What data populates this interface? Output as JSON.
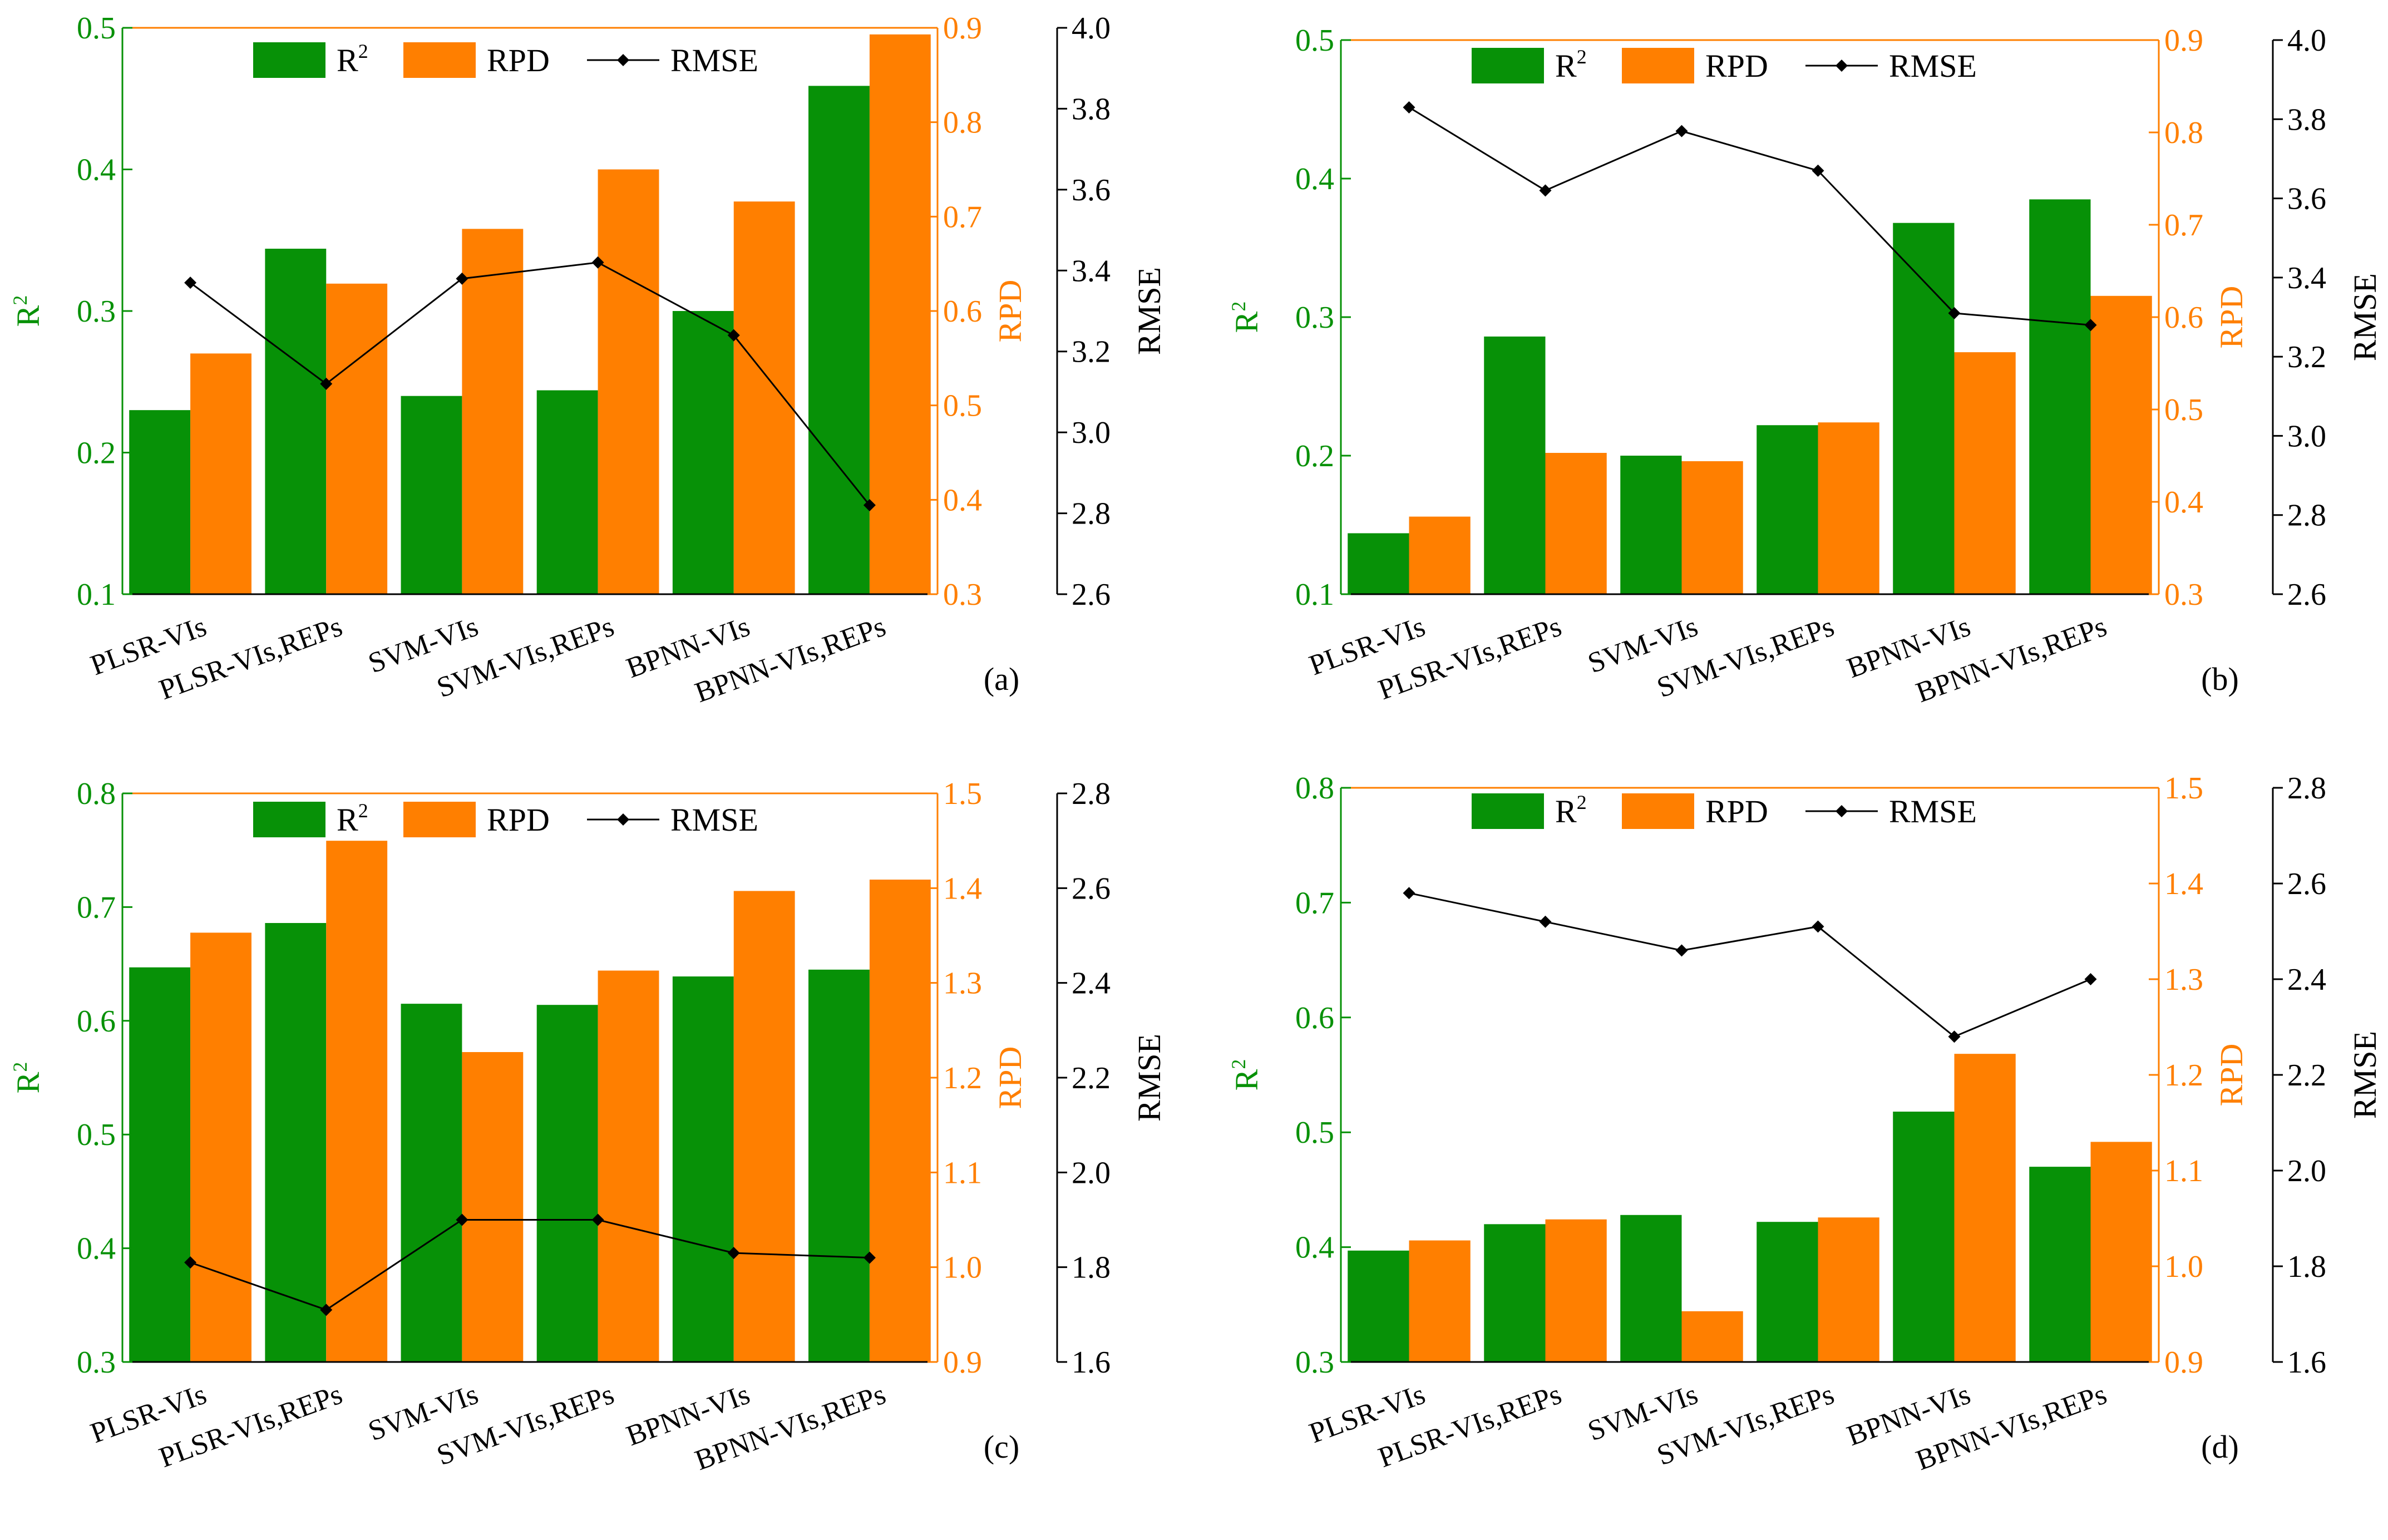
{
  "figure": {
    "panels_count": 4
  },
  "legend": {
    "r2_label": "R",
    "r2_sup": "2",
    "rpd_label": "RPD",
    "rmse_label": "RMSE"
  },
  "colors": {
    "r2": "#079107",
    "rpd": "#ff7f00",
    "rmse": "#000000",
    "axis": "#000000"
  },
  "chart_data": [
    {
      "type": "bar",
      "panel_label": "(a)",
      "categories": [
        "PLSR-VIs",
        "PLSR-VIs,REPs",
        "SVM-VIs",
        "SVM-VIs,REPs",
        "BPNN-VIs",
        "BPNN-VIs,REPs"
      ],
      "series": [
        {
          "name": "R2",
          "axis": "left",
          "values": [
            0.23,
            0.344,
            0.24,
            0.244,
            0.3,
            0.459
          ]
        },
        {
          "name": "RPD",
          "axis": "right",
          "values": [
            0.555,
            0.629,
            0.687,
            0.75,
            0.716,
            0.893
          ]
        },
        {
          "name": "RMSE",
          "axis": "far_right",
          "type": "line",
          "values": [
            3.37,
            3.12,
            3.38,
            3.42,
            3.24,
            2.82
          ]
        }
      ],
      "ylabel_left": "R",
      "ylabel_left_sup": "2",
      "ylabel_right": "RPD",
      "ylabel_far_right": "RMSE",
      "ylim_left": [
        0.1,
        0.5
      ],
      "yticks_left": [
        "0.1",
        "0.2",
        "0.3",
        "0.4",
        "0.5"
      ],
      "ylim_right": [
        0.3,
        0.9
      ],
      "yticks_right": [
        "0.3",
        "0.4",
        "0.5",
        "0.6",
        "0.7",
        "0.8",
        "0.9"
      ],
      "ylim_far_right": [
        2.6,
        4.0
      ],
      "yticks_far_right": [
        "2.6",
        "2.8",
        "3.0",
        "3.2",
        "3.4",
        "3.6",
        "3.8",
        "4.0"
      ],
      "legend_position": "top"
    },
    {
      "type": "bar",
      "panel_label": "(b)",
      "categories": [
        "PLSR-VIs",
        "PLSR-VIs,REPs",
        "SVM-VIs",
        "SVM-VIs,REPs",
        "BPNN-VIs",
        "BPNN-VIs,REPs"
      ],
      "series": [
        {
          "name": "R2",
          "axis": "left",
          "values": [
            0.144,
            0.286,
            0.2,
            0.222,
            0.368,
            0.385
          ]
        },
        {
          "name": "RPD",
          "axis": "right",
          "values": [
            0.384,
            0.453,
            0.444,
            0.486,
            0.562,
            0.623
          ]
        },
        {
          "name": "RMSE",
          "axis": "far_right",
          "type": "line",
          "values": [
            3.83,
            3.62,
            3.77,
            3.67,
            3.31,
            3.28
          ]
        }
      ],
      "ylabel_left": "R",
      "ylabel_left_sup": "2",
      "ylabel_right": "RPD",
      "ylabel_far_right": "RMSE",
      "ylim_left": [
        0.1,
        0.5
      ],
      "yticks_left": [
        "0.1",
        "0.2",
        "0.3",
        "0.4",
        "0.5"
      ],
      "ylim_right": [
        0.3,
        0.9
      ],
      "yticks_right": [
        "0.3",
        "0.4",
        "0.5",
        "0.6",
        "0.7",
        "0.8",
        "0.9"
      ],
      "ylim_far_right": [
        2.6,
        4.0
      ],
      "yticks_far_right": [
        "2.6",
        "2.8",
        "3.0",
        "3.2",
        "3.4",
        "3.6",
        "3.8",
        "4.0"
      ],
      "legend_position": "top"
    },
    {
      "type": "bar",
      "panel_label": "(c)",
      "categories": [
        "PLSR-VIs",
        "PLSR-VIs,REPs",
        "SVM-VIs",
        "SVM-VIs,REPs",
        "BPNN-VIs",
        "BPNN-VIs,REPs"
      ],
      "series": [
        {
          "name": "R2",
          "axis": "left",
          "values": [
            0.647,
            0.686,
            0.615,
            0.614,
            0.639,
            0.645
          ]
        },
        {
          "name": "RPD",
          "axis": "right",
          "values": [
            1.353,
            1.45,
            1.227,
            1.313,
            1.397,
            1.409
          ]
        },
        {
          "name": "RMSE",
          "axis": "far_right",
          "type": "line",
          "values": [
            1.81,
            1.71,
            1.9,
            1.9,
            1.83,
            1.82
          ]
        }
      ],
      "ylabel_left": "R",
      "ylabel_left_sup": "2",
      "ylabel_right": "RPD",
      "ylabel_far_right": "RMSE",
      "ylim_left": [
        0.3,
        0.8
      ],
      "yticks_left": [
        "0.3",
        "0.4",
        "0.5",
        "0.6",
        "0.7",
        "0.8"
      ],
      "ylim_right": [
        0.9,
        1.5
      ],
      "yticks_right": [
        "0.9",
        "1.0",
        "1.1",
        "1.2",
        "1.3",
        "1.4",
        "1.5"
      ],
      "ylim_far_right": [
        1.6,
        2.8
      ],
      "yticks_far_right": [
        "1.6",
        "1.8",
        "2.0",
        "2.2",
        "2.4",
        "2.6",
        "2.8"
      ],
      "legend_position": "top"
    },
    {
      "type": "bar",
      "panel_label": "(d)",
      "categories": [
        "PLSR-VIs",
        "PLSR-VIs,REPs",
        "SVM-VIs",
        "SVM-VIs,REPs",
        "BPNN-VIs",
        "BPNN-VIs,REPs"
      ],
      "series": [
        {
          "name": "R2",
          "axis": "left",
          "values": [
            0.397,
            0.42,
            0.428,
            0.422,
            0.518,
            0.47
          ]
        },
        {
          "name": "RPD",
          "axis": "right",
          "values": [
            1.027,
            1.049,
            0.953,
            1.051,
            1.222,
            1.13
          ]
        },
        {
          "name": "RMSE",
          "axis": "far_right",
          "type": "line",
          "values": [
            2.58,
            2.52,
            2.46,
            2.51,
            2.28,
            2.4
          ]
        }
      ],
      "ylabel_left": "R",
      "ylabel_left_sup": "2",
      "ylabel_right": "RPD",
      "ylabel_far_right": "RMSE",
      "ylim_left": [
        0.3,
        0.8
      ],
      "yticks_left": [
        "0.3",
        "0.4",
        "0.5",
        "0.6",
        "0.7",
        "0.8"
      ],
      "ylim_right": [
        0.9,
        1.5
      ],
      "yticks_right": [
        "0.9",
        "1.0",
        "1.1",
        "1.2",
        "1.3",
        "1.4",
        "1.5"
      ],
      "ylim_far_right": [
        1.6,
        2.8
      ],
      "yticks_far_right": [
        "1.6",
        "1.8",
        "2.0",
        "2.2",
        "2.4",
        "2.6",
        "2.8"
      ],
      "legend_position": "top"
    }
  ]
}
